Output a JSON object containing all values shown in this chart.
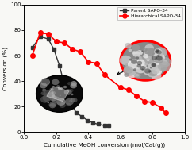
{
  "parent_x": [
    0.05,
    0.1,
    0.15,
    0.185,
    0.22,
    0.255,
    0.29,
    0.325,
    0.36,
    0.395,
    0.43,
    0.46,
    0.5,
    0.525
  ],
  "parent_y": [
    66,
    75,
    73,
    65,
    52,
    35,
    22,
    15,
    12,
    9,
    7,
    6,
    5,
    5
  ],
  "hier_x": [
    0.05,
    0.1,
    0.15,
    0.2,
    0.25,
    0.3,
    0.35,
    0.4,
    0.45,
    0.5,
    0.6,
    0.65,
    0.7,
    0.75,
    0.8,
    0.85,
    0.88
  ],
  "hier_y": [
    60,
    78,
    77,
    71,
    70,
    65,
    63,
    55,
    54,
    45,
    35,
    33,
    28,
    24,
    23,
    19,
    15
  ],
  "parent_color": "#333333",
  "hier_color": "#ff0000",
  "xlabel": "Cumulative MeOH conversion (mol/Cat(g))",
  "ylabel": "Conversion (%)",
  "xlim": [
    0.0,
    1.0
  ],
  "ylim": [
    0,
    100
  ],
  "xticks": [
    0.0,
    0.2,
    0.4,
    0.6,
    0.8,
    1.0
  ],
  "yticks": [
    0,
    20,
    40,
    60,
    80,
    100
  ],
  "legend_parent": "Parent SAPO-34",
  "legend_hier": "Hierarchical SAPO-34",
  "bg_color": "#f8f8f5"
}
